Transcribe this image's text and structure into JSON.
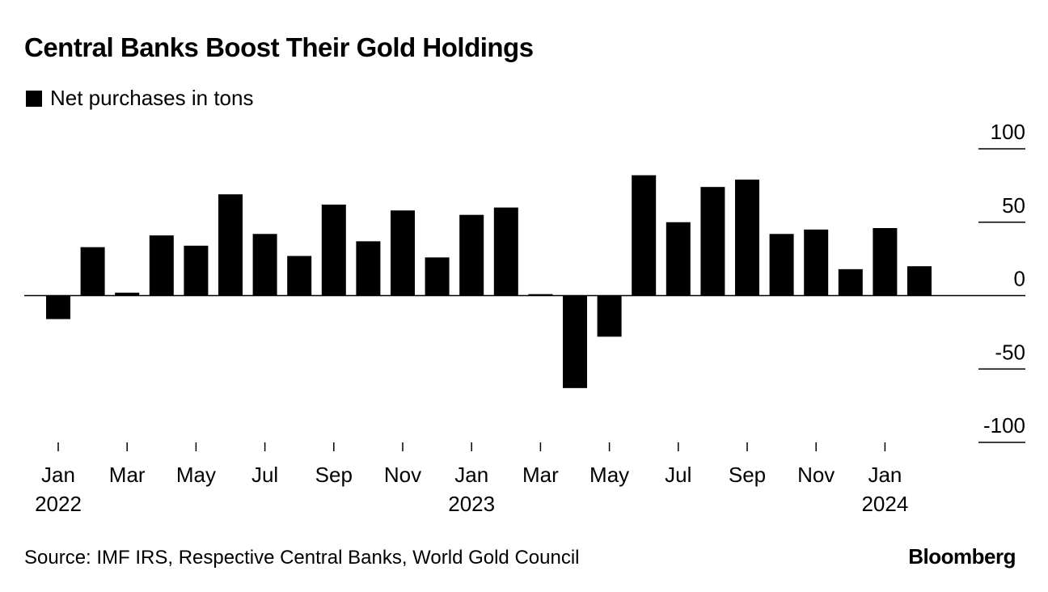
{
  "chart_data": {
    "type": "bar",
    "title": "Central Banks Boost Their Gold Holdings",
    "legend": [
      {
        "name": "Net purchases in tons",
        "color": "#000000"
      }
    ],
    "x_tick_labels": [
      {
        "month": "Jan",
        "year": "2022",
        "index": 0
      },
      {
        "month": "Mar",
        "year": "",
        "index": 2
      },
      {
        "month": "May",
        "year": "",
        "index": 4
      },
      {
        "month": "Jul",
        "year": "",
        "index": 6
      },
      {
        "month": "Sep",
        "year": "",
        "index": 8
      },
      {
        "month": "Nov",
        "year": "",
        "index": 10
      },
      {
        "month": "Jan",
        "year": "2023",
        "index": 12
      },
      {
        "month": "Mar",
        "year": "",
        "index": 14
      },
      {
        "month": "May",
        "year": "",
        "index": 16
      },
      {
        "month": "Jul",
        "year": "",
        "index": 18
      },
      {
        "month": "Sep",
        "year": "",
        "index": 20
      },
      {
        "month": "Nov",
        "year": "",
        "index": 22
      },
      {
        "month": "Jan",
        "year": "2024",
        "index": 24
      }
    ],
    "categories": [
      "Jan 2022",
      "Feb 2022",
      "Mar 2022",
      "Apr 2022",
      "May 2022",
      "Jun 2022",
      "Jul 2022",
      "Aug 2022",
      "Sep 2022",
      "Oct 2022",
      "Nov 2022",
      "Dec 2022",
      "Jan 2023",
      "Feb 2023",
      "Mar 2023",
      "Apr 2023",
      "May 2023",
      "Jun 2023",
      "Jul 2023",
      "Aug 2023",
      "Sep 2023",
      "Oct 2023",
      "Nov 2023",
      "Dec 2023",
      "Jan 2024",
      "Feb 2024"
    ],
    "series": [
      {
        "name": "Net purchases in tons",
        "color": "#000000",
        "values": [
          -16,
          33,
          2,
          41,
          34,
          69,
          42,
          27,
          62,
          37,
          58,
          26,
          55,
          60,
          1,
          -63,
          -28,
          82,
          50,
          74,
          79,
          42,
          45,
          18,
          46,
          20
        ]
      }
    ],
    "y_ticks": [
      "100",
      "50",
      "0",
      "-50",
      "-100"
    ],
    "ylim": [
      -100,
      100
    ],
    "y_axis_position": "right",
    "xlabel": "",
    "ylabel": "",
    "legend_position": "top-left"
  },
  "source": "Source: IMF IRS, Respective Central Banks, World Gold Council",
  "brand": "Bloomberg"
}
